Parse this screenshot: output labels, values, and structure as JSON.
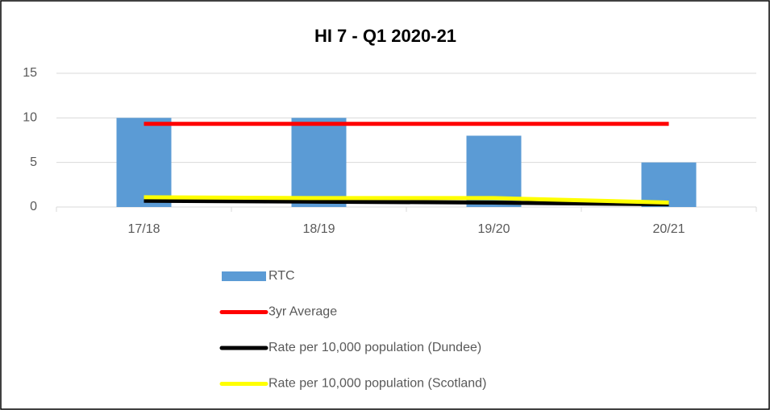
{
  "chart_data": {
    "type": "bar",
    "title": "HI 7 - Q1 2020-21",
    "categories": [
      "17/18",
      "18/19",
      "19/20",
      "20/21"
    ],
    "series": [
      {
        "name": "RTC",
        "type": "bar",
        "color": "#5b9bd5",
        "values": [
          10,
          10,
          8,
          5
        ]
      },
      {
        "name": "3yr Average",
        "type": "line",
        "color": "#ff0000",
        "values": [
          9.33,
          9.33,
          9.33,
          9.33
        ]
      },
      {
        "name": "Rate per 10,000 population (Dundee)",
        "type": "line",
        "color": "#000000",
        "values": [
          0.7,
          0.6,
          0.5,
          0.3
        ]
      },
      {
        "name": "Rate per 10,000 population (Scotland)",
        "type": "line",
        "color": "#ffff00",
        "values": [
          1.1,
          1.0,
          1.0,
          0.5
        ]
      }
    ],
    "ylim": [
      0,
      15
    ],
    "yticks": [
      0,
      5,
      10,
      15
    ],
    "grid": true,
    "legend": "bottom"
  }
}
